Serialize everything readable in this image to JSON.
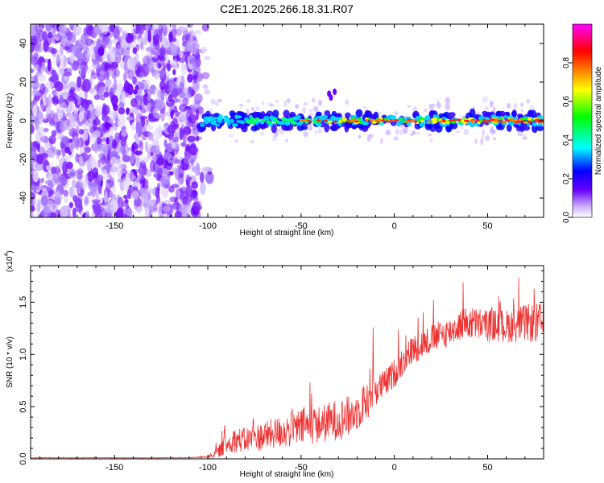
{
  "title": "C2E1.2025.266.18.31.R07",
  "chart_data": [
    {
      "type": "heatmap",
      "xlabel": "Height of straight line (km)",
      "ylabel": "Frequency (Hz)",
      "xlim": [
        -195,
        80
      ],
      "ylim": [
        -50,
        50
      ],
      "xticks": [
        -150,
        -100,
        -50,
        0,
        50
      ],
      "yticks": [
        -40,
        -20,
        0,
        20,
        40
      ],
      "grid": false,
      "description_values": {
        "noise_region_x": [
          -195,
          -105
        ],
        "signal_line_frequency_hz": 0,
        "signal_start_x": -105
      },
      "colorbar": {
        "label": "Normalized spectral amplitude",
        "range": [
          0.0,
          1.0
        ],
        "ticks": [
          0.0,
          0.2,
          0.4,
          0.6,
          0.8
        ],
        "tick_labels": [
          "0.0",
          "0.2",
          "0.4",
          "0.6",
          "0.8"
        ],
        "colors": [
          "#ffffff",
          "#6a00ff",
          "#0000ff",
          "#00ffff",
          "#00ff00",
          "#ffff00",
          "#ff8000",
          "#ff0000",
          "#ff00ff"
        ]
      }
    },
    {
      "type": "line",
      "xlabel": "Height of straight line (km)",
      "ylabel": "SNR (10 * v/v)",
      "y_multiplier_label": "(x10",
      "y_multiplier_exp": "4",
      "xlim": [
        -195,
        80
      ],
      "ylim": [
        0,
        1.85
      ],
      "xticks": [
        -150,
        -100,
        -50,
        0,
        50
      ],
      "yticks": [
        0.0,
        0.5,
        1.0,
        1.5
      ],
      "ytick_labels": [
        "0.0",
        "0.5",
        "1.0",
        "1.5"
      ],
      "color": "#ee3333",
      "series": [
        {
          "x": [
            -195,
            -150,
            -110,
            -100,
            -95,
            -90,
            -85,
            -80,
            -70,
            -60,
            -50,
            -40,
            -30,
            -25,
            -20,
            -15,
            -12,
            -10,
            -5,
            0,
            5,
            10,
            20,
            30,
            35,
            40,
            50,
            60,
            70,
            80
          ],
          "y": [
            0.01,
            0.01,
            0.01,
            0.02,
            0.06,
            0.14,
            0.18,
            0.18,
            0.22,
            0.26,
            0.3,
            0.33,
            0.38,
            0.4,
            0.45,
            0.55,
            0.7,
            0.66,
            0.72,
            0.82,
            0.95,
            1.05,
            1.15,
            1.22,
            1.28,
            1.3,
            1.28,
            1.27,
            1.3,
            1.3
          ],
          "noise": [
            0.003,
            0.003,
            0.003,
            0.01,
            0.05,
            0.1,
            0.12,
            0.12,
            0.14,
            0.16,
            0.18,
            0.18,
            0.2,
            0.2,
            0.18,
            0.2,
            0.25,
            0.15,
            0.14,
            0.14,
            0.14,
            0.14,
            0.14,
            0.14,
            0.15,
            0.16,
            0.16,
            0.16,
            0.18,
            0.2
          ]
        }
      ]
    }
  ]
}
